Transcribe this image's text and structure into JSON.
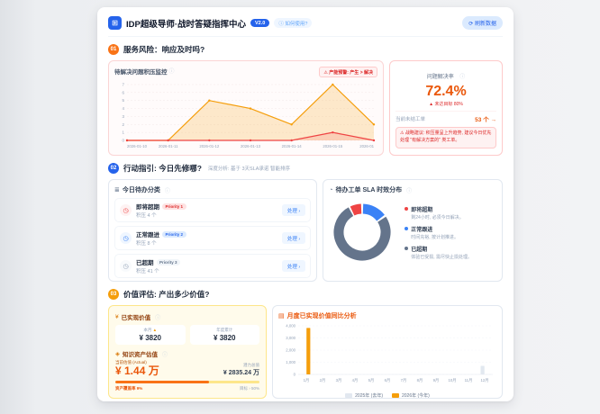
{
  "header": {
    "logo_glyph": "⊞",
    "title": "IDP超级导师·战时答疑指挥中心",
    "version_badge": "V2.0",
    "help_badge": "ⓘ 如何使用?",
    "refresh_button": "⟳ 刷新数据"
  },
  "sections": {
    "risk": {
      "num": "01",
      "title": "服务风险：响应及时吗?"
    },
    "action": {
      "num": "02",
      "title": "行动指引: 今日先修哪?",
      "subtitle": "深度分析: 基于 3天SLA承诺 智能排序"
    },
    "value": {
      "num": "03",
      "title": "价值评估: 产出多少价值?"
    }
  },
  "backlog_card": {
    "title": "待解决问题积压监控",
    "info_icon": "ⓘ",
    "warning_badge": "⚠ 产能预警: 产生 > 解决"
  },
  "resolve_card": {
    "title": "问题解决率",
    "info_icon": "ⓘ",
    "value": "72.4%",
    "gap_note": "▲ 未达目标 80%",
    "open_label": "当前未结工单",
    "open_value": "53 个 →",
    "alert": "⚠ 战略建议: 积压量呈上升趋势, 建议今日优先处理 \"有解决方案的\" 类工单。"
  },
  "todo_card": {
    "icon": "≣",
    "title": "今日待办分类",
    "info_icon": "ⓘ",
    "action_label": "处理 ›",
    "rows": [
      {
        "icon": "◷",
        "label": "即将超期",
        "priority": "Priority 1",
        "count": "积压 4 个"
      },
      {
        "icon": "◷",
        "label": "正常跟进",
        "priority": "Priority 2",
        "count": "积压 8 个"
      },
      {
        "icon": "◷",
        "label": "已超期",
        "priority": "Priority 3",
        "count": "积压 41 个"
      }
    ]
  },
  "sla_card": {
    "icon": "◔",
    "title": "待办工单 SLA 时效分布",
    "info_icon": "ⓘ",
    "legend": [
      {
        "label": "即将超期",
        "desc": "剩24小时, 必须今日解决。",
        "color": "#ef4444"
      },
      {
        "label": "正常跟进",
        "desc": "时间充裕, 按计划推进。",
        "color": "#3b82f6"
      },
      {
        "label": "已超期",
        "desc": "体验已受损, 需尽快止损处理。",
        "color": "#64748b"
      }
    ]
  },
  "value_card": {
    "icon": "¥",
    "header": "已实现价值",
    "info_icon": "ⓘ",
    "month_label": "本月 ",
    "month_arrow": "▲",
    "month_value": "¥ 3820",
    "ytd_label": "年度累计",
    "ytd_value": "¥ 3820",
    "asset_icon": "◈",
    "asset_header": "知识资产估值",
    "current_label": "当前估值 (Actual)",
    "current_value": "¥ 1.44 万",
    "potential_label": "潜力总值",
    "potential_value": "¥ 2835.24 万",
    "coverage_label": "资产覆盖率 9%",
    "target_label": "目标 › 50%",
    "bar_fill_pct": 65
  },
  "trend_card": {
    "icon": "▤",
    "title": "月度已实现价值同比分析"
  },
  "chart_data": [
    {
      "type": "line",
      "title": "待解决问题积压监控",
      "x": [
        "2026-01-10",
        "2026-01-11",
        "2026-01-12",
        "2026-01-13",
        "2026-01-14",
        "2026-01-15",
        "2026-01"
      ],
      "series": [
        {
          "name": "产生(积压)",
          "color": "#f59e0b",
          "fill": "rgba(245,158,11,0.20)",
          "values": [
            0,
            0,
            5,
            4,
            2,
            7,
            2
          ]
        },
        {
          "name": "解决",
          "color": "#ef4444",
          "fill": "rgba(239,68,68,0.15)",
          "values": [
            0,
            0,
            0,
            0,
            0,
            1,
            0
          ]
        }
      ],
      "ylim": [
        0,
        7
      ],
      "grid": true
    },
    {
      "type": "pie",
      "title": "待办工单 SLA 时效分布",
      "labels": [
        "即将超期",
        "正常跟进",
        "已超期"
      ],
      "values": [
        4,
        8,
        41
      ],
      "colors": [
        "#ef4444",
        "#3b82f6",
        "#64748b"
      ],
      "legend_position": "right"
    },
    {
      "type": "bar",
      "title": "月度已实现价值同比分析",
      "categories": [
        "1月",
        "2月",
        "3月",
        "4月",
        "5月",
        "6月",
        "7月",
        "8月",
        "9月",
        "10月",
        "11月",
        "12月"
      ],
      "series": [
        {
          "name": "2025年 (去年)",
          "color": "#e2e8f0",
          "values": [
            0,
            0,
            0,
            0,
            0,
            0,
            0,
            0,
            0,
            0,
            0,
            700
          ]
        },
        {
          "name": "2026年 (今年)",
          "color": "#f59e0b",
          "values": [
            3820,
            0,
            0,
            0,
            0,
            0,
            0,
            0,
            0,
            0,
            0,
            0
          ]
        }
      ],
      "ylim": [
        0,
        4000
      ],
      "yticks": [
        0,
        1000,
        2000,
        3000,
        4000
      ],
      "legend_position": "bottom"
    }
  ]
}
